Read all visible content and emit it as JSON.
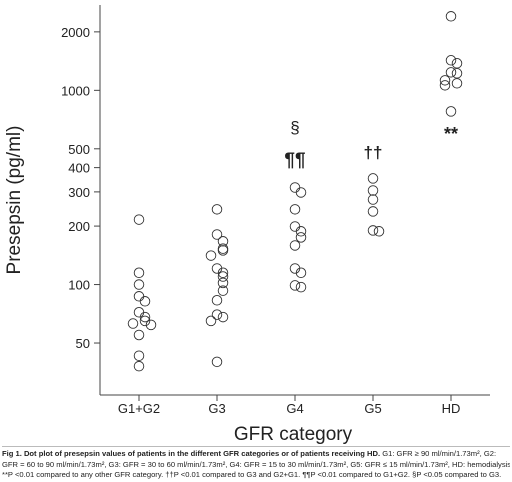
{
  "chart_data": {
    "type": "scatter",
    "ylabel": "Presepsin (pg/ml)",
    "xlabel": "GFR category",
    "categories": [
      "G1+G2",
      "G3",
      "G4",
      "G5",
      "HD"
    ],
    "log_y": true,
    "ylim": [
      27,
      2750
    ],
    "yticks": [
      50,
      100,
      200,
      300,
      400,
      500,
      1000,
      2000
    ],
    "color": "#333333",
    "groups": [
      [
        216,
        115,
        100,
        87,
        82,
        72,
        68,
        65,
        63,
        62,
        55,
        43,
        38
      ],
      [
        244,
        181,
        167,
        153,
        150,
        141,
        121,
        115,
        110,
        102,
        93,
        83,
        70,
        68,
        65,
        40
      ],
      [
        316,
        298,
        244,
        199,
        188,
        175,
        159,
        121,
        115,
        99,
        97
      ],
      [
        352,
        305,
        274,
        238,
        190,
        188
      ],
      [
        2405,
        1428,
        1378,
        1238,
        1224,
        1126,
        1087,
        1061,
        779
      ]
    ],
    "annotations": [
      "§",
      "¶¶",
      "††",
      "**"
    ]
  },
  "caption": {
    "title": "Fig 1. Dot plot of presepsin values of patients in the different GFR categories or of patients receiving HD.",
    "lines": [
      "G1: GFR ≥ 90 ml/min/1.73m², G2:",
      "GFR = 60 to 90 ml/min/1.73m², G3: GFR = 30 to 60 ml/min/1.73m², G4: GFR = 15 to 30 ml/min/1.73m², G5: GFR ≤ 15 ml/min/1.73m², HD: hemodialysis.",
      "**P <0.01 compared to any other GFR category. ††P <0.01 compared to G3 and G2+G1. ¶¶P <0.01 compared to G1+G2. §P <0.05 compared to G3."
    ]
  }
}
